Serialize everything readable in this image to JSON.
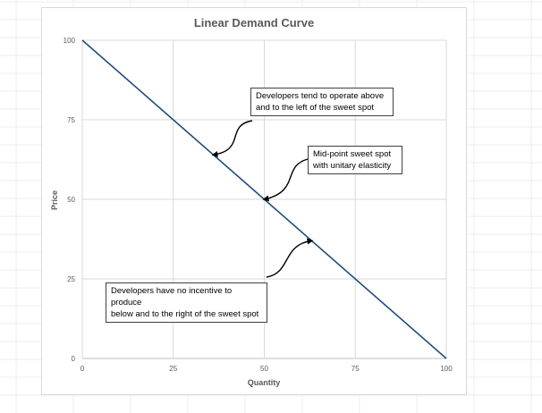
{
  "chart_data": {
    "type": "line",
    "title": "Linear Demand Curve",
    "xlabel": "Quantity",
    "ylabel": "Price",
    "xlim": [
      0,
      100
    ],
    "ylim": [
      0,
      100
    ],
    "xticks": [
      0,
      25,
      50,
      75,
      100
    ],
    "yticks": [
      0,
      25,
      50,
      75,
      100
    ],
    "grid": true,
    "legend": "none",
    "series": [
      {
        "x": [
          0,
          100
        ],
        "y": [
          100,
          0
        ],
        "color": "#1f4e79"
      }
    ],
    "annotations": [
      {
        "text": "Developers tend to operate above and to the left of the sweet spot",
        "line1": "Developers tend to operate above",
        "line2": "and to the left of the sweet spot",
        "point": [
          36,
          64
        ]
      },
      {
        "text": "Mid-point sweet spot with unitary elasticity",
        "line1": "Mid-point sweet spot",
        "line2": "with unitary elasticity",
        "point": [
          50,
          50
        ]
      },
      {
        "text": "Developers have no incentive  to produce below and to the right of the sweet spot",
        "line1": "Developers have no incentive  to produce",
        "line2": "below and to the right of the sweet spot",
        "point": [
          63,
          37
        ]
      }
    ]
  }
}
